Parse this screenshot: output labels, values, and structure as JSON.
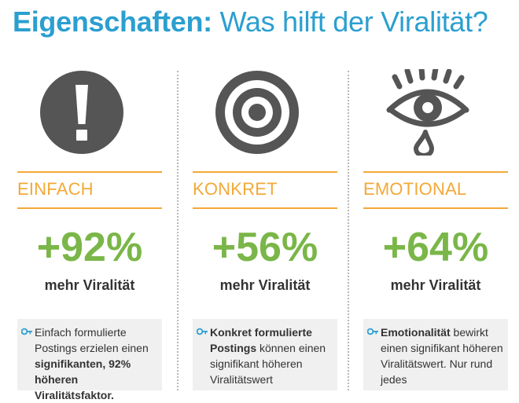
{
  "title": {
    "bold": "Eigenschaften:",
    "light": "Was hilft der Viralität?"
  },
  "colors": {
    "blue": "#2b9fd0",
    "orange": "#f2a938",
    "green": "#7ab648",
    "icon_gray": "#555555"
  },
  "columns": [
    {
      "icon": "exclamation-icon",
      "name": "EINFACH",
      "percent": "+92%",
      "subtitle": "mehr Viralität",
      "text": {
        "p1": "Einfach formulierte Postings erzielen einen ",
        "b1": "signifikanten, 92%",
        "p2": " ",
        "b2": "höheren Viralitätsfaktor."
      }
    },
    {
      "icon": "target-icon",
      "name": "KONKRET",
      "percent": "+56%",
      "subtitle": "mehr Viralität",
      "text": {
        "b1": "Konkret formulierte Postings",
        "p1": " können einen signifikant höheren Viralitätswert"
      }
    },
    {
      "icon": "crying-eye-icon",
      "name": "EMOTIONAL",
      "percent": "+64%",
      "subtitle": "mehr Viralität",
      "text": {
        "b1": "Emotionalität",
        "p1": " bewirkt einen signifikant höheren Viralitätswert. Nur rund jedes"
      }
    }
  ]
}
